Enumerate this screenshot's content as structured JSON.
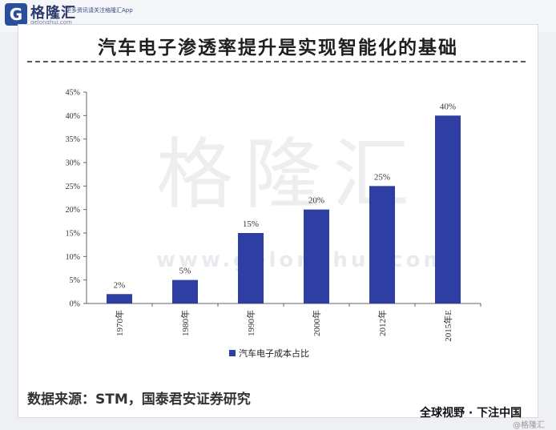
{
  "header": {
    "logo_glyph": "G",
    "logo_name": "格隆汇",
    "logo_url": "gelonghui.com",
    "logo_tagline": "更多资讯请关注格隆汇App"
  },
  "title": "汽车电子渗透率提升是实现智能化的基础",
  "watermark": {
    "cn": "格隆汇",
    "url": "www.gelonghui.com"
  },
  "chart_data": {
    "type": "bar",
    "categories": [
      "1970年",
      "1980年",
      "1990年",
      "2000年",
      "2012年",
      "2015年E"
    ],
    "series": [
      {
        "name": "汽车电子成本占比",
        "values": [
          2,
          5,
          15,
          20,
          25,
          40
        ],
        "color": "#2e3ea3"
      }
    ],
    "data_labels": [
      "2%",
      "5%",
      "15%",
      "20%",
      "25%",
      "40%"
    ],
    "yticks": [
      "0%",
      "5%",
      "10%",
      "15%",
      "20%",
      "25%",
      "30%",
      "35%",
      "40%",
      "45%"
    ],
    "ylim": [
      0,
      45
    ],
    "grid": false,
    "legend": "bottom"
  },
  "source": "数据来源：STM，国泰君安证券研究",
  "footer": {
    "caption": "全球视野 · 下注中国",
    "mark": "@格隆汇"
  }
}
